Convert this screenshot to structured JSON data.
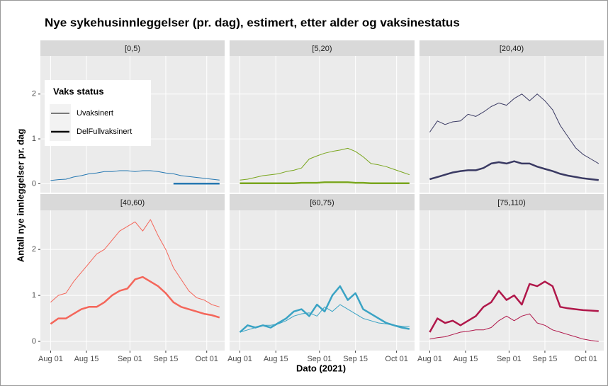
{
  "chart_data": {
    "type": "line",
    "title": "Nye sykehusinnleggelser (pr. dag), estimert, etter alder og vaksinestatus",
    "xlabel": "Dato (2021)",
    "ylabel": "Antall nye innleggelser pr. dag",
    "legend_title": "Vaks status",
    "x": [
      "2021-08-01",
      "2021-08-04",
      "2021-08-07",
      "2021-08-10",
      "2021-08-13",
      "2021-08-16",
      "2021-08-19",
      "2021-08-22",
      "2021-08-25",
      "2021-08-28",
      "2021-08-31",
      "2021-09-03",
      "2021-09-06",
      "2021-09-09",
      "2021-09-12",
      "2021-09-15",
      "2021-09-18",
      "2021-09-21",
      "2021-09-24",
      "2021-09-27",
      "2021-09-30",
      "2021-10-03",
      "2021-10-06"
    ],
    "xlim": [
      "2021-07-28",
      "2021-10-08"
    ],
    "xticks": [
      {
        "value": "2021-08-01",
        "label": "Aug 01"
      },
      {
        "value": "2021-08-15",
        "label": "Aug 15"
      },
      {
        "value": "2021-09-01",
        "label": "Sep 01"
      },
      {
        "value": "2021-09-15",
        "label": "Sep 15"
      },
      {
        "value": "2021-10-01",
        "label": "Oct 01"
      }
    ],
    "ylim": [
      -0.2,
      2.85
    ],
    "yticks": [
      0,
      1,
      2
    ],
    "grid": true,
    "facets": [
      {
        "title": "[0,5)",
        "series": [
          {
            "name": "Uvaksinert",
            "color": "#2678b2",
            "linewidth": 1,
            "values": [
              0.07,
              0.09,
              0.1,
              0.15,
              0.18,
              0.22,
              0.24,
              0.27,
              0.27,
              0.29,
              0.29,
              0.27,
              0.29,
              0.29,
              0.27,
              0.24,
              0.22,
              0.18,
              0.16,
              0.14,
              0.12,
              0.1,
              0.08
            ]
          },
          {
            "name": "DelFullvaksinert",
            "color": "#2678b2",
            "linewidth": 2.5,
            "values": [
              null,
              null,
              null,
              null,
              null,
              null,
              null,
              null,
              null,
              null,
              null,
              null,
              null,
              null,
              null,
              null,
              0,
              0,
              0,
              0,
              0,
              0,
              0
            ]
          }
        ]
      },
      {
        "title": "[5,20)",
        "series": [
          {
            "name": "Uvaksinert",
            "color": "#7aa61e",
            "linewidth": 1,
            "values": [
              0.08,
              0.1,
              0.14,
              0.18,
              0.2,
              0.22,
              0.27,
              0.3,
              0.35,
              0.55,
              0.62,
              0.68,
              0.72,
              0.75,
              0.79,
              0.72,
              0.6,
              0.45,
              0.42,
              0.38,
              0.32,
              0.26,
              0.2
            ]
          },
          {
            "name": "DelFullvaksinert",
            "color": "#7aa61e",
            "linewidth": 2.5,
            "values": [
              0.01,
              0.01,
              0.01,
              0.01,
              0.01,
              0.01,
              0.01,
              0.01,
              0.02,
              0.02,
              0.02,
              0.03,
              0.03,
              0.03,
              0.03,
              0.02,
              0.02,
              0.01,
              0.01,
              0.01,
              0.01,
              0.01,
              0.01
            ]
          }
        ]
      },
      {
        "title": "[20,40)",
        "series": [
          {
            "name": "Uvaksinert",
            "color": "#3a3a63",
            "linewidth": 1,
            "values": [
              1.15,
              1.4,
              1.32,
              1.38,
              1.4,
              1.55,
              1.5,
              1.6,
              1.72,
              1.8,
              1.75,
              1.9,
              2.0,
              1.85,
              2.0,
              1.85,
              1.65,
              1.3,
              1.05,
              0.8,
              0.65,
              0.55,
              0.45
            ]
          },
          {
            "name": "DelFullvaksinert",
            "color": "#3a3a63",
            "linewidth": 2.5,
            "values": [
              0.1,
              0.15,
              0.2,
              0.25,
              0.28,
              0.3,
              0.3,
              0.35,
              0.45,
              0.48,
              0.45,
              0.5,
              0.45,
              0.45,
              0.38,
              0.33,
              0.28,
              0.22,
              0.18,
              0.15,
              0.12,
              0.1,
              0.08
            ]
          }
        ]
      },
      {
        "title": "[40,60)",
        "series": [
          {
            "name": "Uvaksinert",
            "color": "#f4665a",
            "linewidth": 1,
            "values": [
              0.85,
              1.0,
              1.05,
              1.3,
              1.5,
              1.7,
              1.9,
              2.0,
              2.2,
              2.4,
              2.5,
              2.6,
              2.4,
              2.65,
              2.3,
              2.0,
              1.6,
              1.35,
              1.1,
              0.95,
              0.9,
              0.8,
              0.75
            ]
          },
          {
            "name": "DelFullvaksinert",
            "color": "#f4665a",
            "linewidth": 2.5,
            "values": [
              0.38,
              0.5,
              0.5,
              0.6,
              0.7,
              0.75,
              0.75,
              0.85,
              1.0,
              1.1,
              1.15,
              1.35,
              1.4,
              1.3,
              1.2,
              1.05,
              0.85,
              0.75,
              0.7,
              0.65,
              0.6,
              0.57,
              0.52
            ]
          }
        ]
      },
      {
        "title": "[60,75)",
        "series": [
          {
            "name": "Uvaksinert",
            "color": "#3aa3c4",
            "linewidth": 1,
            "values": [
              0.2,
              0.25,
              0.3,
              0.35,
              0.35,
              0.38,
              0.45,
              0.55,
              0.6,
              0.62,
              0.55,
              0.75,
              0.65,
              0.8,
              0.7,
              0.6,
              0.5,
              0.45,
              0.4,
              0.38,
              0.35,
              0.33,
              0.33
            ]
          },
          {
            "name": "DelFullvaksinert",
            "color": "#3aa3c4",
            "linewidth": 2.5,
            "values": [
              0.2,
              0.35,
              0.3,
              0.35,
              0.3,
              0.4,
              0.5,
              0.65,
              0.7,
              0.55,
              0.8,
              0.65,
              1.0,
              1.2,
              0.9,
              1.05,
              0.7,
              0.6,
              0.5,
              0.4,
              0.35,
              0.3,
              0.27
            ]
          }
        ]
      },
      {
        "title": "[75,110)",
        "series": [
          {
            "name": "Uvaksinert",
            "color": "#b0174a",
            "linewidth": 1,
            "values": [
              0.05,
              0.08,
              0.1,
              0.15,
              0.2,
              0.22,
              0.25,
              0.25,
              0.3,
              0.45,
              0.55,
              0.45,
              0.55,
              0.6,
              0.4,
              0.35,
              0.25,
              0.2,
              0.15,
              0.1,
              0.05,
              0.02,
              0.0
            ]
          },
          {
            "name": "DelFullvaksinert",
            "color": "#b0174a",
            "linewidth": 2.5,
            "values": [
              0.2,
              0.5,
              0.4,
              0.45,
              0.35,
              0.45,
              0.55,
              0.75,
              0.85,
              1.1,
              0.9,
              1.0,
              0.8,
              1.25,
              1.2,
              1.3,
              1.2,
              0.75,
              0.72,
              0.7,
              0.68,
              0.67,
              0.66
            ]
          }
        ]
      }
    ]
  }
}
